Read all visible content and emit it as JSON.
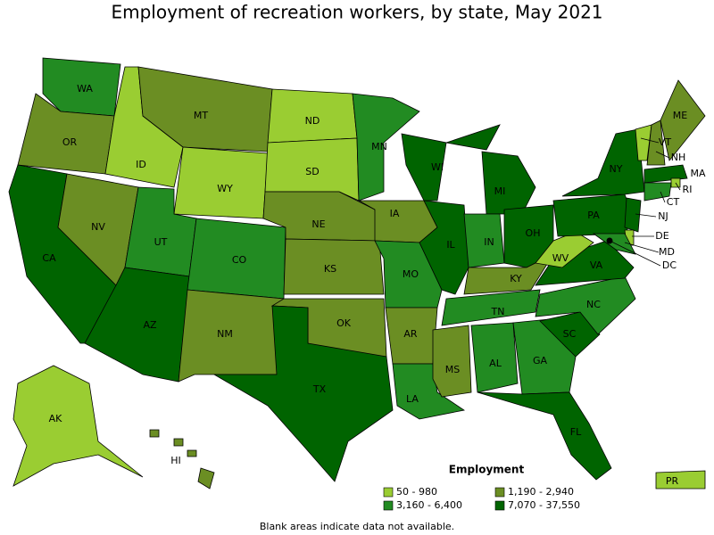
{
  "title": "Employment of recreation workers, by state, May 2021",
  "legend": {
    "title": "Employment",
    "items": [
      {
        "label": "50 - 980",
        "color": "#9acd32"
      },
      {
        "label": "1,190 - 2,940",
        "color": "#6b8e23"
      },
      {
        "label": "3,160 - 6,400",
        "color": "#228b22"
      },
      {
        "label": "7,070 - 37,550",
        "color": "#006400"
      }
    ]
  },
  "states": [
    {
      "label": "WA",
      "class": 2
    },
    {
      "label": "OR",
      "class": 1
    },
    {
      "label": "CA",
      "class": 3
    },
    {
      "label": "NV",
      "class": 1
    },
    {
      "label": "ID",
      "class": 0
    },
    {
      "label": "MT",
      "class": 1
    },
    {
      "label": "WY",
      "class": 0
    },
    {
      "label": "UT",
      "class": 2
    },
    {
      "label": "AZ",
      "class": 3
    },
    {
      "label": "CO",
      "class": 2
    },
    {
      "label": "NM",
      "class": 1
    },
    {
      "label": "ND",
      "class": 0
    },
    {
      "label": "SD",
      "class": 0
    },
    {
      "label": "NE",
      "class": 1
    },
    {
      "label": "KS",
      "class": 1
    },
    {
      "label": "OK",
      "class": 1
    },
    {
      "label": "TX",
      "class": 3
    },
    {
      "label": "MN",
      "class": 2
    },
    {
      "label": "IA",
      "class": 1
    },
    {
      "label": "MO",
      "class": 2
    },
    {
      "label": "AR",
      "class": 1
    },
    {
      "label": "LA",
      "class": 2
    },
    {
      "label": "WI",
      "class": 3
    },
    {
      "label": "IL",
      "class": 3
    },
    {
      "label": "MI",
      "class": 3
    },
    {
      "label": "IN",
      "class": 2
    },
    {
      "label": "OH",
      "class": 3
    },
    {
      "label": "KY",
      "class": 1
    },
    {
      "label": "TN",
      "class": 2
    },
    {
      "label": "MS",
      "class": 1
    },
    {
      "label": "AL",
      "class": 2
    },
    {
      "label": "GA",
      "class": 2
    },
    {
      "label": "FL",
      "class": 3
    },
    {
      "label": "SC",
      "class": 3
    },
    {
      "label": "NC",
      "class": 2
    },
    {
      "label": "VA",
      "class": 3
    },
    {
      "label": "WV",
      "class": 0
    },
    {
      "label": "PA",
      "class": 3
    },
    {
      "label": "NY",
      "class": 3
    },
    {
      "label": "VT",
      "class": 0
    },
    {
      "label": "NH",
      "class": 1
    },
    {
      "label": "ME",
      "class": 1
    },
    {
      "label": "MA",
      "class": 3
    },
    {
      "label": "RI",
      "class": 0
    },
    {
      "label": "CT",
      "class": 2
    },
    {
      "label": "NJ",
      "class": 3
    },
    {
      "label": "DE",
      "class": 0
    },
    {
      "label": "MD",
      "class": 2
    },
    {
      "label": "DC",
      "class": 3
    },
    {
      "label": "AK",
      "class": 0
    },
    {
      "label": "HI",
      "class": 1
    },
    {
      "label": "PR",
      "class": 0
    }
  ],
  "footnote": "Blank areas indicate data not available."
}
